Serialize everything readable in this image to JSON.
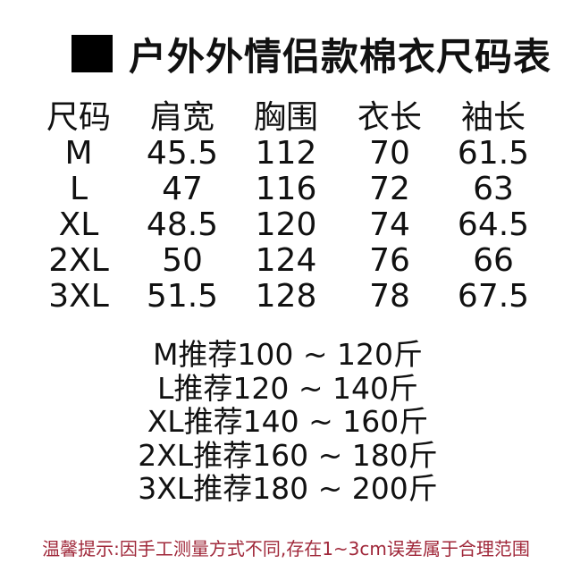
{
  "title": "户外外情侣款棉衣尺码表",
  "table": {
    "headers": [
      "尺码",
      "肩宽",
      "胸围",
      "衣长",
      "袖长"
    ],
    "rows": [
      [
        "M",
        "45.5",
        "112",
        "70",
        "61.5"
      ],
      [
        "L",
        "47",
        "116",
        "72",
        "63"
      ],
      [
        "XL",
        "48.5",
        "120",
        "74",
        "64.5"
      ],
      [
        "2XL",
        "50",
        "124",
        "76",
        "66"
      ],
      [
        "3XL",
        "51.5",
        "128",
        "78",
        "67.5"
      ]
    ]
  },
  "recommendations": [
    "M推荐100 ~ 120斤",
    "L推荐120 ~ 140斤",
    "XL推荐140 ~ 160斤",
    "2XL推荐160 ~ 180斤",
    "3XL推荐180 ~ 200斤"
  ],
  "note": "温馨提示:因手工测量方式不同,存在1~3cm误差属于合理范围",
  "colors": {
    "note": "#a0283a",
    "text": "#111111"
  }
}
